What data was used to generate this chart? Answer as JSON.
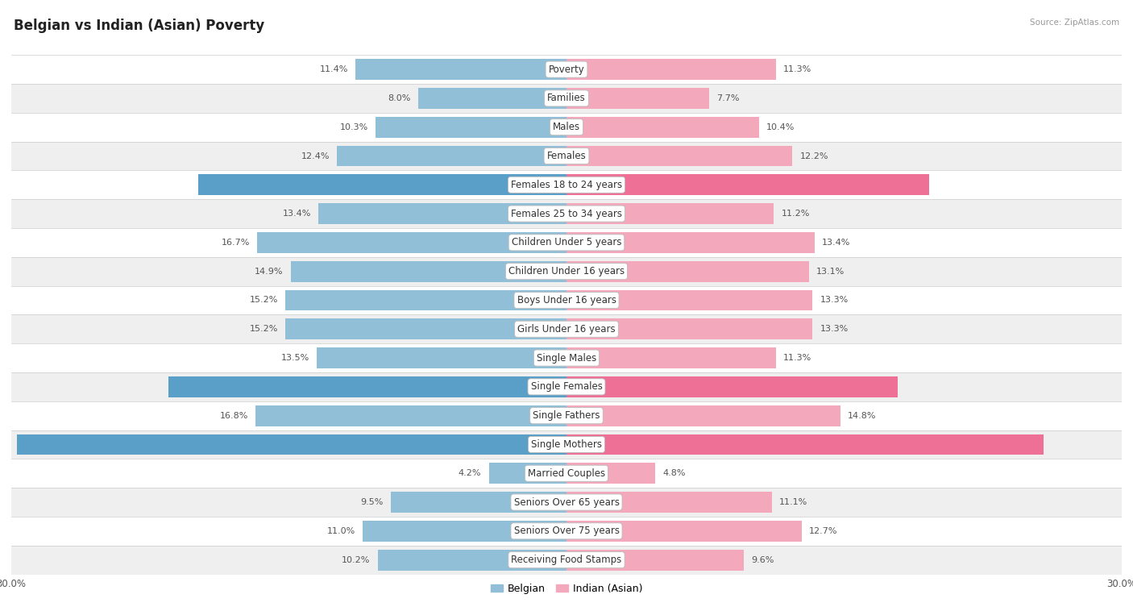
{
  "title": "Belgian vs Indian (Asian) Poverty",
  "source": "Source: ZipAtlas.com",
  "categories": [
    "Poverty",
    "Families",
    "Males",
    "Females",
    "Females 18 to 24 years",
    "Females 25 to 34 years",
    "Children Under 5 years",
    "Children Under 16 years",
    "Boys Under 16 years",
    "Girls Under 16 years",
    "Single Males",
    "Single Females",
    "Single Fathers",
    "Single Mothers",
    "Married Couples",
    "Seniors Over 65 years",
    "Seniors Over 75 years",
    "Receiving Food Stamps"
  ],
  "belgian": [
    11.4,
    8.0,
    10.3,
    12.4,
    19.9,
    13.4,
    16.7,
    14.9,
    15.2,
    15.2,
    13.5,
    21.5,
    16.8,
    29.7,
    4.2,
    9.5,
    11.0,
    10.2
  ],
  "indian": [
    11.3,
    7.7,
    10.4,
    12.2,
    19.6,
    11.2,
    13.4,
    13.1,
    13.3,
    13.3,
    11.3,
    17.9,
    14.8,
    25.8,
    4.8,
    11.1,
    12.7,
    9.6
  ],
  "belgian_color": "#92bfd8",
  "indian_color": "#f4a8bc",
  "belgian_highlight_color": "#5a9fc8",
  "indian_highlight_color": "#ef7096",
  "highlight_rows": [
    4,
    11,
    13
  ],
  "xlim": 30.0,
  "bg_row_light": "#efefef",
  "bg_row_white": "#ffffff",
  "bar_height": 0.72,
  "label_fontsize": 8.5,
  "value_fontsize": 8.0,
  "title_fontsize": 12,
  "axis_label_fontsize": 8.5
}
